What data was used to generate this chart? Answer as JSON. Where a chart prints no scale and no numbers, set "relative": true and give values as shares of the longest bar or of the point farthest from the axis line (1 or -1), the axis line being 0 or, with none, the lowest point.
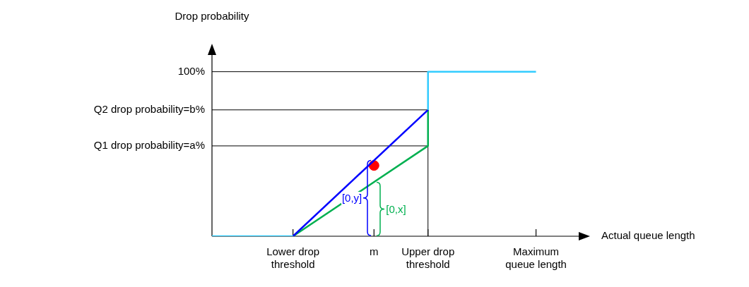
{
  "chart_data": {
    "type": "line",
    "relative": true,
    "xlabel": "Actual queue length",
    "ylabel": "Drop probability",
    "categories": [
      null,
      null,
      null,
      "Lower drop threshold",
      null,
      null,
      "m",
      null,
      "Upper drop threshold",
      null,
      null,
      null,
      "Maximum queue length",
      null,
      null
    ],
    "marker": "none",
    "series": [
      {
        "color": "#33ccff",
        "values": [
          0,
          null,
          null,
          0,
          null,
          null,
          null,
          null,
          null,
          null,
          null,
          null,
          null,
          null,
          null
        ]
      },
      {
        "color": "#33ccff",
        "x": [
          "Upper drop threshold",
          "Upper drop threshold",
          "Maximum queue length"
        ],
        "values": [
          0.768,
          1,
          1
        ]
      },
      {
        "color": "#0000ff",
        "x": [
          "Lower drop threshold",
          "Upper drop threshold"
        ],
        "values": [
          0,
          0.768
        ]
      },
      {
        "color": "#00b050",
        "x": [
          "Lower drop threshold",
          "Upper drop threshold",
          "Upper drop threshold"
        ],
        "values": [
          0,
          0.549,
          0.768
        ]
      },
      {
        "type": "scatter",
        "color": "#ff0000",
        "marker": "circle",
        "x": [
          "m"
        ],
        "values": [
          0.43
        ]
      }
    ],
    "ref_lines": [
      {
        "axis": "y",
        "value": 1,
        "label": "100%"
      },
      {
        "axis": "y",
        "value": 0.768,
        "label": "Q2 drop probability=b%"
      },
      {
        "axis": "y",
        "value": 0.549,
        "label": "Q1 drop probability=a%"
      },
      {
        "axis": "x",
        "value": "Upper drop threshold",
        "label": null
      }
    ],
    "annotations": [
      "[0,y]",
      "[0,x]"
    ]
  }
}
